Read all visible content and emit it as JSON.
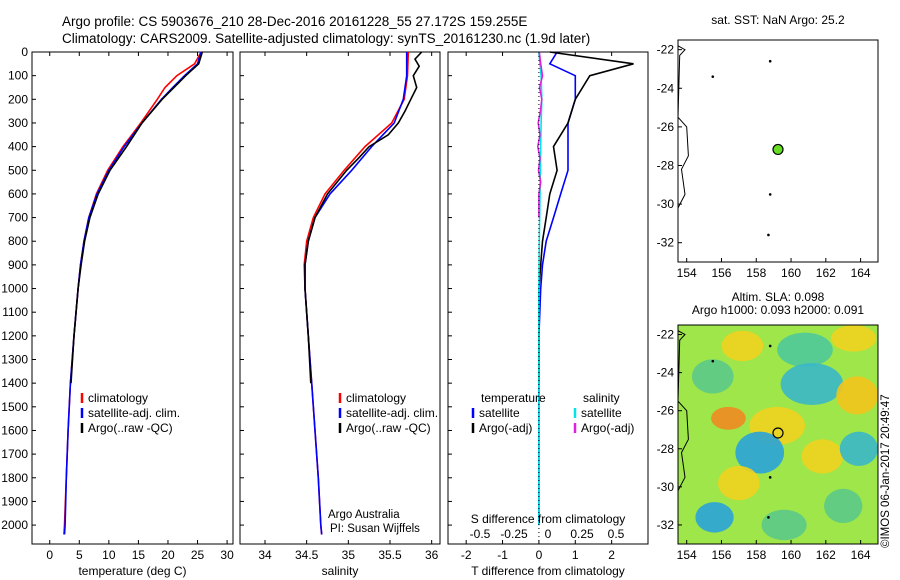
{
  "header": {
    "line1": "Argo profile: CS 5903676_210 28-Dec-2016 20161228_55 27.172S 159.255E",
    "line2": "Climatology: CARS2009. Satellite-adjusted climatology: synTS_20161230.nc (1.9d later)"
  },
  "side_label": "©IMOS 06-Jan-2017 20:49:47",
  "colors": {
    "climatology": "#ff0000",
    "satellite": "#0000ff",
    "argo": "#000000",
    "sal_satellite": "#00e5e5",
    "sal_argo": "#e020e0"
  },
  "chart_data": [
    {
      "id": "temperature",
      "type": "line",
      "xlabel": "temperature (deg C)",
      "ylabel": "",
      "xlim": [
        -3,
        31
      ],
      "ylim": [
        2080,
        0
      ],
      "xticks": [
        0,
        5,
        10,
        15,
        20,
        25,
        30
      ],
      "yticks": [
        0,
        100,
        200,
        300,
        400,
        500,
        600,
        700,
        800,
        900,
        1000,
        1100,
        1200,
        1300,
        1400,
        1500,
        1600,
        1700,
        1800,
        1900,
        2000
      ],
      "legend": [
        "climatology",
        "satellite-adj. clim.",
        "Argo(..raw -QC)"
      ],
      "legend_position": "lower-center",
      "series": [
        {
          "name": "climatology",
          "color": "#ff0000",
          "depth": [
            0,
            50,
            100,
            150,
            200,
            300,
            400,
            500,
            600,
            700,
            800,
            900,
            1000,
            1200,
            1400,
            1600,
            1800,
            2000,
            2040
          ],
          "values": [
            25.6,
            24.5,
            21.5,
            19.5,
            18.2,
            15.4,
            12.4,
            9.8,
            7.9,
            6.6,
            5.8,
            5.2,
            4.8,
            4.1,
            3.5,
            3.1,
            2.8,
            2.5,
            2.4
          ]
        },
        {
          "name": "satellite-adj. clim.",
          "color": "#0000ff",
          "depth": [
            0,
            50,
            100,
            150,
            200,
            300,
            400,
            500,
            600,
            700,
            800,
            900,
            1000,
            1200,
            1400,
            1600,
            1800,
            2000,
            2040
          ],
          "values": [
            25.6,
            25.0,
            22.8,
            20.8,
            18.9,
            15.6,
            12.6,
            10.0,
            8.0,
            6.6,
            5.8,
            5.2,
            4.8,
            4.1,
            3.5,
            3.1,
            2.8,
            2.6,
            2.5
          ]
        },
        {
          "name": "Argo(..raw -QC)",
          "color": "#000000",
          "depth": [
            0,
            50,
            100,
            150,
            200,
            300,
            400,
            500,
            600,
            700,
            800,
            900,
            1000,
            1200,
            1400
          ],
          "values": [
            25.8,
            25.2,
            23.0,
            21.0,
            19.0,
            15.6,
            13.0,
            10.2,
            8.2,
            6.8,
            5.9,
            5.3,
            4.8,
            4.1,
            3.6
          ]
        }
      ]
    },
    {
      "id": "salinity",
      "type": "line",
      "xlabel": "salinity",
      "ylabel": "",
      "xlim": [
        33.7,
        36.1
      ],
      "ylim": [
        2080,
        0
      ],
      "xticks": [
        34,
        34.5,
        35,
        35.5,
        36
      ],
      "legend": [
        "climatology",
        "satellite-adj. clim.",
        "Argo(..raw -QC)"
      ],
      "legend_position": "lower-center",
      "annotation": [
        "Argo Australia",
        "PI: Susan Wijffels"
      ],
      "series": [
        {
          "name": "climatology",
          "color": "#ff0000",
          "depth": [
            0,
            100,
            200,
            300,
            400,
            500,
            600,
            700,
            800,
            900,
            1000,
            1200,
            1400,
            1600,
            1800,
            2000,
            2040
          ],
          "values": [
            35.72,
            35.71,
            35.67,
            35.52,
            35.2,
            34.95,
            34.72,
            34.58,
            34.5,
            34.47,
            34.48,
            34.52,
            34.56,
            34.6,
            34.64,
            34.67,
            34.68
          ]
        },
        {
          "name": "satellite-adj. clim.",
          "color": "#0000ff",
          "depth": [
            0,
            100,
            200,
            300,
            400,
            500,
            600,
            700,
            800,
            900,
            1000,
            1200,
            1400,
            1600,
            1800,
            2000,
            2040
          ],
          "values": [
            35.7,
            35.7,
            35.66,
            35.55,
            35.28,
            35.04,
            34.78,
            34.6,
            34.52,
            34.48,
            34.48,
            34.52,
            34.56,
            34.6,
            34.64,
            34.67,
            34.68
          ]
        },
        {
          "name": "Argo(..raw -QC)",
          "color": "#000000",
          "depth": [
            0,
            30,
            60,
            100,
            150,
            200,
            250,
            300,
            350,
            400,
            450,
            500,
            600,
            700,
            800,
            900,
            1000,
            1200,
            1400
          ],
          "values": [
            35.88,
            35.8,
            35.85,
            35.78,
            35.82,
            35.75,
            35.68,
            35.6,
            35.48,
            35.25,
            35.12,
            34.98,
            34.75,
            34.6,
            34.52,
            34.48,
            34.48,
            34.52,
            34.55
          ]
        }
      ]
    },
    {
      "id": "difference",
      "type": "line",
      "xlabel": "T difference from climatology",
      "xlabel_top": "S difference from climatology",
      "xlim": [
        -2.5,
        3
      ],
      "ylim": [
        2080,
        0
      ],
      "xticks": [
        -2,
        -1,
        0,
        1,
        2
      ],
      "xticks_secondary": [
        -0.5,
        -0.25,
        0,
        0.25,
        0.5
      ],
      "legend_left_title": "temperature",
      "legend_right_title": "salinity",
      "legend": [
        "satellite",
        "Argo(-adj)",
        "satellite",
        "Argo(-adj)"
      ],
      "series": [
        {
          "name": "satellite",
          "quantity": "temperature",
          "color": "#0000ff",
          "depth": [
            0,
            50,
            100,
            200,
            300,
            400,
            500,
            600,
            700,
            800,
            900,
            1000,
            1200,
            1400,
            1600,
            1800,
            2000
          ],
          "values": [
            0.5,
            0.3,
            1.0,
            1.0,
            0.8,
            0.8,
            0.8,
            0.6,
            0.4,
            0.2,
            0.1,
            0.05,
            0.0,
            0.0,
            0.0,
            0.0,
            0.0
          ]
        },
        {
          "name": "Argo(-adj)",
          "quantity": "temperature",
          "color": "#000000",
          "depth": [
            0,
            50,
            100,
            200,
            300,
            400,
            500,
            600,
            700,
            800,
            900,
            1000,
            1200,
            1400
          ],
          "values": [
            0.3,
            2.6,
            1.4,
            1.0,
            0.8,
            0.4,
            0.5,
            0.3,
            0.2,
            0.1,
            0.05,
            0.0,
            0.0,
            0.0
          ]
        },
        {
          "name": "satellite",
          "quantity": "salinity",
          "color": "#00e5e5",
          "depth": [
            0,
            100,
            200,
            300,
            400,
            500,
            600,
            800,
            1000,
            1200,
            1400,
            1600,
            1800,
            2000
          ],
          "values": [
            0.0,
            0.06,
            0.08,
            0.06,
            0.05,
            0.04,
            0.03,
            0.01,
            0.0,
            0.0,
            0.0,
            0.0,
            0.0,
            0.0
          ]
        },
        {
          "name": "Argo(-adj)",
          "quantity": "salinity",
          "color": "#e020e0",
          "depth": [
            0,
            50,
            100,
            150,
            200,
            250,
            300,
            350,
            400,
            450,
            500,
            550,
            600,
            700
          ],
          "values": [
            0.01,
            0.05,
            0.1,
            0.02,
            0.08,
            0.04,
            -0.02,
            0.03,
            -0.03,
            0.03,
            -0.01,
            0.05,
            0.0,
            0.0
          ]
        }
      ]
    },
    {
      "id": "sst_map",
      "type": "scatter",
      "title": "sat. SST: NaN Argo: 25.2",
      "xlim": [
        153.5,
        165
      ],
      "ylim": [
        -33,
        -21.5
      ],
      "xticks": [
        154,
        156,
        158,
        160,
        162,
        164
      ],
      "yticks": [
        -22,
        -24,
        -26,
        -28,
        -30,
        -32
      ],
      "points": [
        {
          "x": 159.25,
          "y": -27.17,
          "color": "#66dd22"
        }
      ]
    },
    {
      "id": "sla_map",
      "type": "heatmap",
      "title": "Altim. SLA: 0.098",
      "subtitle": "Argo h1000: 0.093 h2000: 0.091",
      "xlim": [
        153.5,
        165
      ],
      "ylim": [
        -33,
        -21.5
      ],
      "xticks": [
        154,
        156,
        158,
        160,
        162,
        164
      ],
      "yticks": [
        -22,
        -24,
        -26,
        -28,
        -30,
        -32
      ],
      "points": [
        {
          "x": 159.25,
          "y": -27.17
        }
      ]
    }
  ]
}
